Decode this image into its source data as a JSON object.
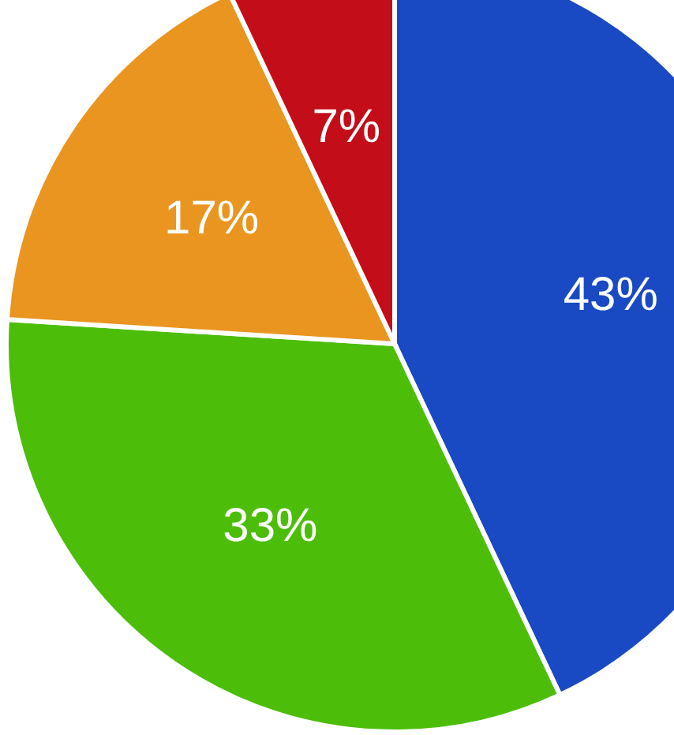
{
  "chart_data": {
    "type": "pie",
    "categories": [
      null,
      null,
      null,
      null
    ],
    "values": [
      43,
      33,
      17,
      7
    ],
    "colors": [
      "#1a49c4",
      "#4cbe0a",
      "#e99520",
      "#c30d18"
    ],
    "value_labels": [
      "43%",
      "33%",
      "17%",
      "7%"
    ]
  }
}
